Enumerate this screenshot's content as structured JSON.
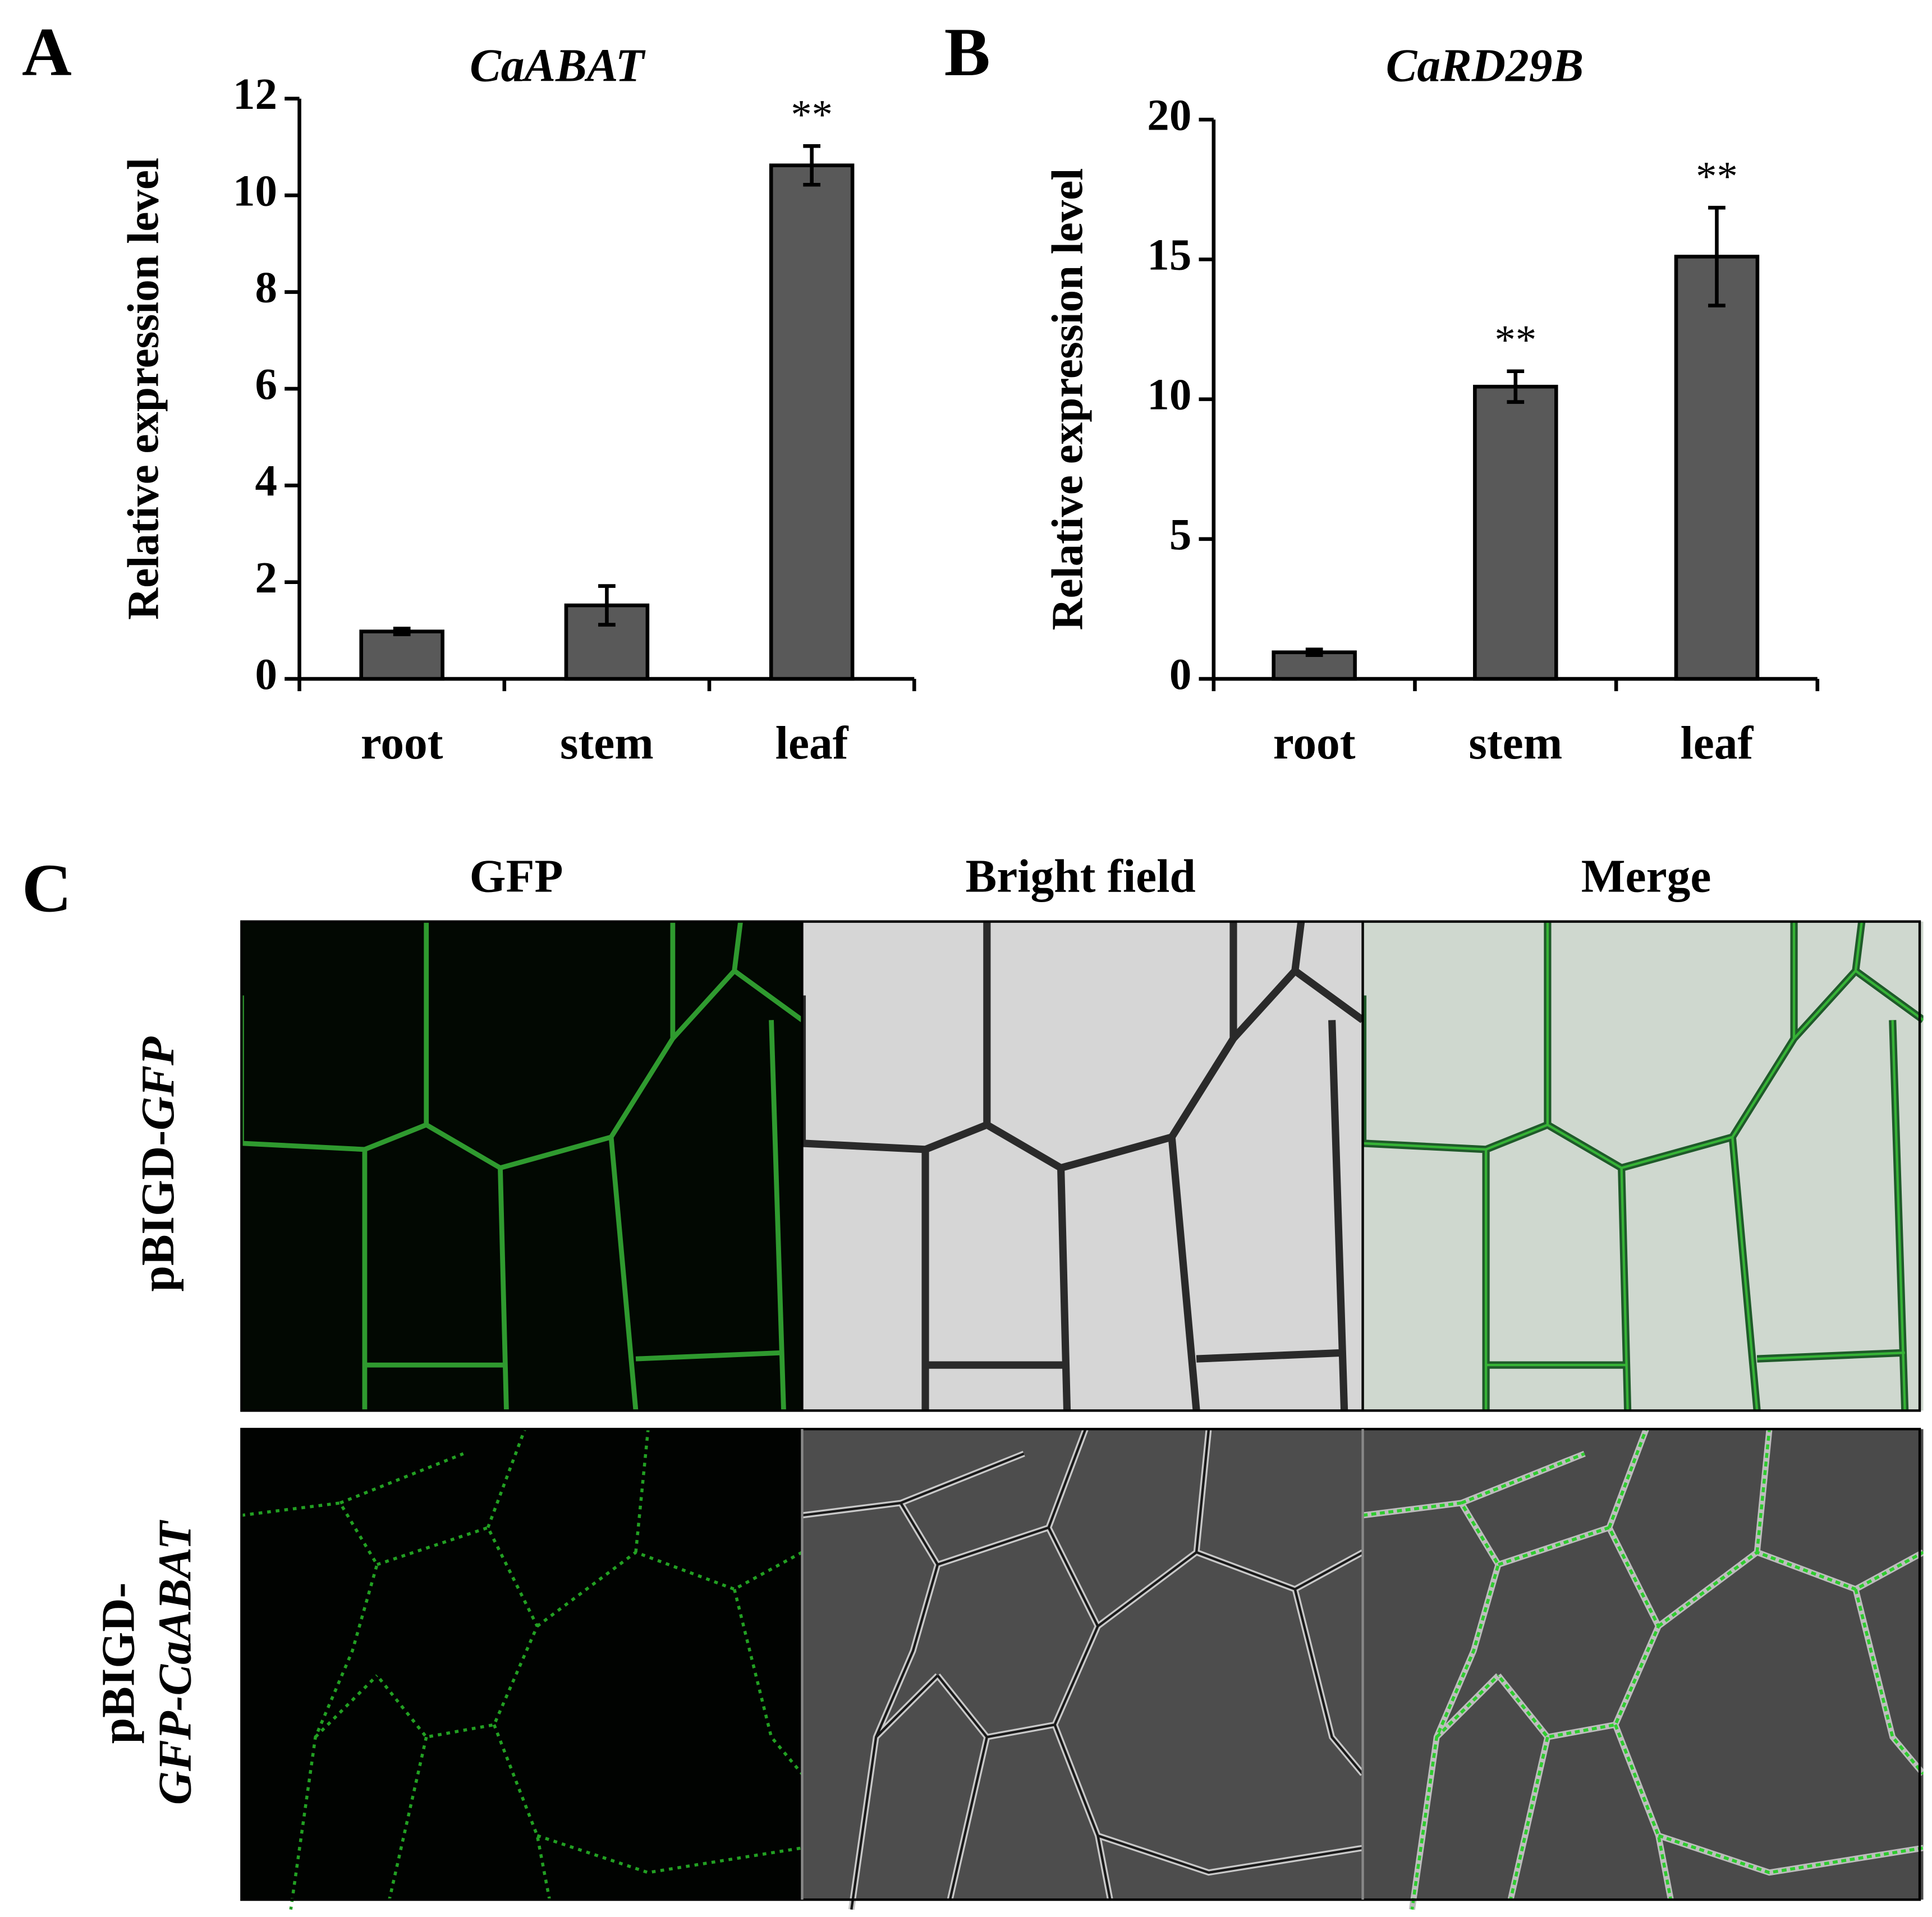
{
  "chart_data": [
    {
      "type": "bar",
      "panel_label": "A",
      "title": "CaABAT",
      "y_label": "Relative expression level",
      "categories": [
        "root",
        "stem",
        "leaf"
      ],
      "values": [
        0.98,
        1.52,
        10.62
      ],
      "errors": [
        0.06,
        0.4,
        0.4
      ],
      "annotations": [
        null,
        null,
        "**"
      ],
      "color": "#595959",
      "ylim": [
        0,
        12
      ],
      "yticks": [
        0,
        2,
        4,
        6,
        8,
        10,
        12
      ]
    },
    {
      "type": "bar",
      "panel_label": "B",
      "title": "CaRD29B",
      "y_label": "Relative expression level",
      "categories": [
        "root",
        "stem",
        "leaf"
      ],
      "values": [
        0.95,
        10.45,
        15.1
      ],
      "errors": [
        0.1,
        0.55,
        1.75
      ],
      "annotations": [
        null,
        "**",
        "**"
      ],
      "color": "#595959",
      "ylim": [
        0,
        20
      ],
      "yticks": [
        0,
        5,
        10,
        15,
        20
      ]
    }
  ],
  "panel_c": {
    "panel_label": "C",
    "columns": [
      "GFP",
      "Bright field",
      "Merge"
    ],
    "rows": [
      {
        "prefix": "pBIGD-",
        "italic": "GFP"
      },
      {
        "prefix": "pBIGD-",
        "italic": "GFP-CaABAT"
      }
    ]
  }
}
